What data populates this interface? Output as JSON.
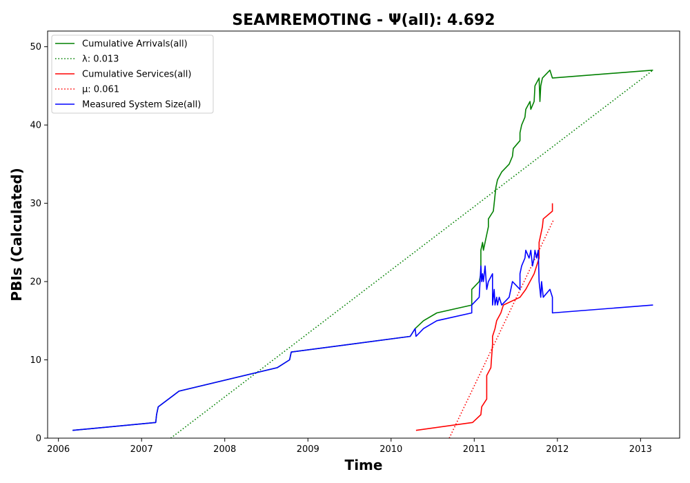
{
  "chart_data": {
    "type": "line",
    "title": "SEAMREMOTING -  Ψ(all): 4.692",
    "xlabel": "Time",
    "ylabel": "PBIs (Calculated)",
    "xlim": [
      2005.87,
      2013.47
    ],
    "ylim": [
      0,
      52
    ],
    "x_ticks": [
      2006,
      2007,
      2008,
      2009,
      2010,
      2011,
      2012,
      2013
    ],
    "y_ticks": [
      0,
      10,
      20,
      30,
      40,
      50
    ],
    "x_tick_labels": [
      "2006",
      "2007",
      "2008",
      "2009",
      "2010",
      "2011",
      "2012",
      "2013"
    ],
    "y_tick_labels": [
      "0",
      "10",
      "20",
      "30",
      "40",
      "50"
    ],
    "legend_position": "top-left",
    "grid": false,
    "series": [
      {
        "name": "Cumulative Arrivals(all)",
        "color": "#008000",
        "style": "solid",
        "points": [
          [
            2006.17,
            1
          ],
          [
            2007.17,
            2
          ],
          [
            2007.18,
            3
          ],
          [
            2007.2,
            4
          ],
          [
            2007.45,
            6
          ],
          [
            2008.63,
            9
          ],
          [
            2008.78,
            10
          ],
          [
            2008.8,
            11
          ],
          [
            2010.23,
            13
          ],
          [
            2010.29,
            14
          ],
          [
            2010.39,
            15
          ],
          [
            2010.55,
            16
          ],
          [
            2010.97,
            17
          ],
          [
            2010.97,
            19
          ],
          [
            2011.06,
            20
          ],
          [
            2011.08,
            21
          ],
          [
            2011.08,
            24
          ],
          [
            2011.1,
            25
          ],
          [
            2011.11,
            24
          ],
          [
            2011.13,
            25
          ],
          [
            2011.15,
            26
          ],
          [
            2011.17,
            27
          ],
          [
            2011.17,
            28
          ],
          [
            2011.23,
            29
          ],
          [
            2011.25,
            31
          ],
          [
            2011.26,
            32
          ],
          [
            2011.28,
            33
          ],
          [
            2011.33,
            34
          ],
          [
            2011.42,
            35
          ],
          [
            2011.46,
            36
          ],
          [
            2011.47,
            37
          ],
          [
            2011.55,
            38
          ],
          [
            2011.55,
            39
          ],
          [
            2011.57,
            40
          ],
          [
            2011.61,
            41
          ],
          [
            2011.62,
            42
          ],
          [
            2011.67,
            43
          ],
          [
            2011.68,
            42
          ],
          [
            2011.72,
            43
          ],
          [
            2011.73,
            45
          ],
          [
            2011.78,
            46
          ],
          [
            2011.79,
            43
          ],
          [
            2011.8,
            45
          ],
          [
            2011.82,
            46
          ],
          [
            2011.91,
            47
          ],
          [
            2011.94,
            46
          ],
          [
            2013.15,
            47
          ]
        ]
      },
      {
        "name": "λ: 0.013",
        "color": "#008000",
        "style": "dotted",
        "points": [
          [
            2007.35,
            0
          ],
          [
            2013.15,
            47
          ]
        ]
      },
      {
        "name": "Cumulative Services(all)",
        "color": "#ff0000",
        "style": "solid",
        "points": [
          [
            2010.3,
            1
          ],
          [
            2010.98,
            2
          ],
          [
            2011.08,
            3
          ],
          [
            2011.09,
            4
          ],
          [
            2011.15,
            5
          ],
          [
            2011.15,
            8
          ],
          [
            2011.2,
            9
          ],
          [
            2011.22,
            12
          ],
          [
            2011.22,
            13
          ],
          [
            2011.25,
            14
          ],
          [
            2011.27,
            15
          ],
          [
            2011.32,
            16
          ],
          [
            2011.35,
            17
          ],
          [
            2011.55,
            18
          ],
          [
            2011.62,
            19
          ],
          [
            2011.72,
            21
          ],
          [
            2011.78,
            23
          ],
          [
            2011.78,
            25
          ],
          [
            2011.8,
            26
          ],
          [
            2011.82,
            27
          ],
          [
            2011.83,
            28
          ],
          [
            2011.94,
            29
          ],
          [
            2011.94,
            30
          ]
        ]
      },
      {
        "name": "μ: 0.061",
        "color": "#ff0000",
        "style": "dotted",
        "points": [
          [
            2010.7,
            0
          ],
          [
            2011.95,
            27.8
          ]
        ]
      },
      {
        "name": "Measured System Size(all)",
        "color": "#0000ff",
        "style": "solid",
        "points": [
          [
            2006.17,
            1
          ],
          [
            2007.17,
            2
          ],
          [
            2007.18,
            3
          ],
          [
            2007.2,
            4
          ],
          [
            2007.45,
            6
          ],
          [
            2008.63,
            9
          ],
          [
            2008.78,
            10
          ],
          [
            2008.8,
            11
          ],
          [
            2010.23,
            13
          ],
          [
            2010.29,
            14
          ],
          [
            2010.3,
            13
          ],
          [
            2010.39,
            14
          ],
          [
            2010.55,
            15
          ],
          [
            2010.97,
            16
          ],
          [
            2010.97,
            17
          ],
          [
            2011.06,
            18
          ],
          [
            2011.08,
            22
          ],
          [
            2011.09,
            20
          ],
          [
            2011.1,
            21
          ],
          [
            2011.11,
            20
          ],
          [
            2011.13,
            22
          ],
          [
            2011.15,
            19
          ],
          [
            2011.17,
            20
          ],
          [
            2011.22,
            21
          ],
          [
            2011.22,
            17
          ],
          [
            2011.24,
            19
          ],
          [
            2011.25,
            17
          ],
          [
            2011.27,
            18
          ],
          [
            2011.28,
            17
          ],
          [
            2011.3,
            18
          ],
          [
            2011.33,
            17
          ],
          [
            2011.42,
            18
          ],
          [
            2011.46,
            20
          ],
          [
            2011.55,
            19
          ],
          [
            2011.55,
            21
          ],
          [
            2011.57,
            22
          ],
          [
            2011.61,
            23
          ],
          [
            2011.62,
            24
          ],
          [
            2011.66,
            23
          ],
          [
            2011.68,
            24
          ],
          [
            2011.7,
            22
          ],
          [
            2011.72,
            23
          ],
          [
            2011.73,
            24
          ],
          [
            2011.75,
            23
          ],
          [
            2011.77,
            24
          ],
          [
            2011.78,
            20
          ],
          [
            2011.8,
            18
          ],
          [
            2011.81,
            20
          ],
          [
            2011.83,
            18
          ],
          [
            2011.91,
            19
          ],
          [
            2011.94,
            18
          ],
          [
            2011.94,
            16
          ],
          [
            2013.15,
            17
          ]
        ]
      }
    ]
  }
}
